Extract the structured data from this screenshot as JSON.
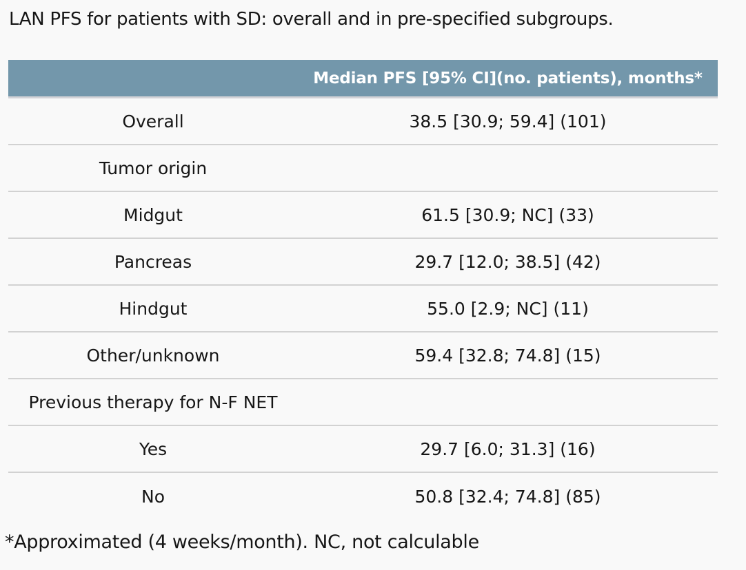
{
  "title": "LAN PFS for patients with SD: overall and in pre-specified subgroups.",
  "table": {
    "header": {
      "label_column": "",
      "value_column": "Median PFS [95% CI](no. patients), months*"
    },
    "rows": [
      {
        "type": "data",
        "label": "Overall",
        "value": "38.5 [30.9; 59.4] (101)"
      },
      {
        "type": "group",
        "label": "Tumor origin",
        "value": ""
      },
      {
        "type": "data",
        "label": "Midgut",
        "value": "61.5 [30.9; NC] (33)"
      },
      {
        "type": "data",
        "label": "Pancreas",
        "value": "29.7 [12.0; 38.5] (42)"
      },
      {
        "type": "data",
        "label": "Hindgut",
        "value": "55.0 [2.9; NC] (11)"
      },
      {
        "type": "data",
        "label": "Other/unknown",
        "value": "59.4 [32.8; 74.8] (15)"
      },
      {
        "type": "group",
        "label": "Previous therapy for N-F NET",
        "value": ""
      },
      {
        "type": "data",
        "label": "Yes",
        "value": "29.7 [6.0; 31.3] (16)"
      },
      {
        "type": "data",
        "label": "No",
        "value": "50.8 [32.4; 74.8] (85)"
      }
    ],
    "footnote": "*Approximated (4 weeks/month). NC, not calculable"
  },
  "colors": {
    "header_bg": "#7397ab",
    "header_text": "#ffffff",
    "page_bg": "#f9f9f9",
    "body_text": "#161616",
    "divider": "#d2d2d2"
  }
}
